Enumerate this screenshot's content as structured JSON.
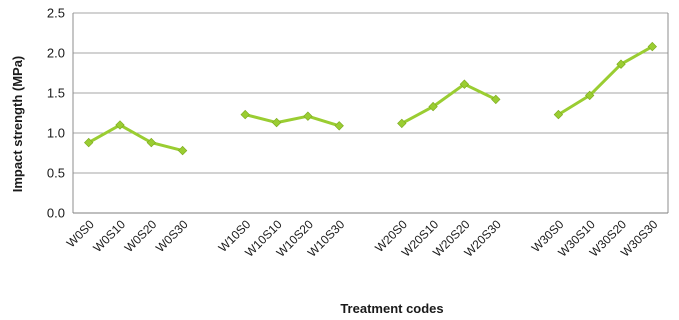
{
  "chart_data": {
    "type": "line",
    "title": "",
    "xlabel": "Treatment codes",
    "ylabel": "Impact strength (MPa)",
    "ylim": [
      0.0,
      2.5
    ],
    "yticks": [
      "0.0",
      "0.5",
      "1.0",
      "1.5",
      "2.0",
      "2.5"
    ],
    "grid": "horizontal",
    "line_color": "#9acd32",
    "groups": [
      {
        "categories": [
          "W0S0",
          "W0S10",
          "W0S20",
          "W0S30"
        ],
        "values": [
          0.88,
          1.1,
          0.88,
          0.78
        ]
      },
      {
        "categories": [
          "W10S0",
          "W10S10",
          "W10S20",
          "W10S30"
        ],
        "values": [
          1.23,
          1.13,
          1.21,
          1.09
        ]
      },
      {
        "categories": [
          "W20S0",
          "W20S10",
          "W20S20",
          "W20S30"
        ],
        "values": [
          1.12,
          1.33,
          1.61,
          1.42
        ]
      },
      {
        "categories": [
          "W30S0",
          "W30S10",
          "W30S20",
          "W30S30"
        ],
        "values": [
          1.23,
          1.47,
          1.86,
          2.08
        ]
      }
    ]
  }
}
